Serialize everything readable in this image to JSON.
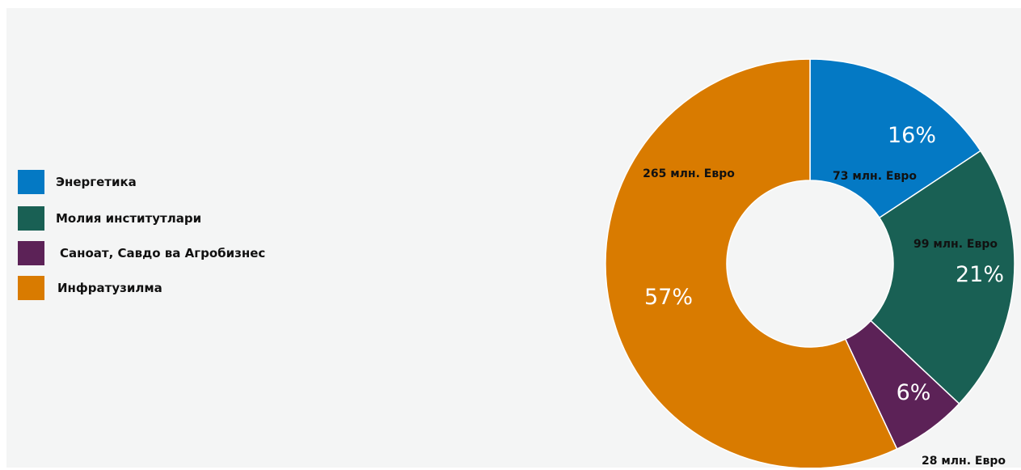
{
  "chart_data": {
    "type": "pie",
    "variant": "donut",
    "legend_position": "left",
    "categories": [
      "Энергетика",
      "Молия институтлари",
      "Саноат, Савдо ва Агробизнес",
      "Инфратузилма"
    ],
    "values": [
      73,
      99,
      28,
      265
    ],
    "value_labels": [
      "73 млн. Евро",
      "99 млн. Евро",
      "28 млн. Евро",
      "265 млн. Евро"
    ],
    "percent_labels": [
      "16%",
      "21%",
      "6%",
      "57%"
    ],
    "colors": [
      "#0479c4",
      "#196054",
      "#5c2257",
      "#d97b00"
    ]
  }
}
